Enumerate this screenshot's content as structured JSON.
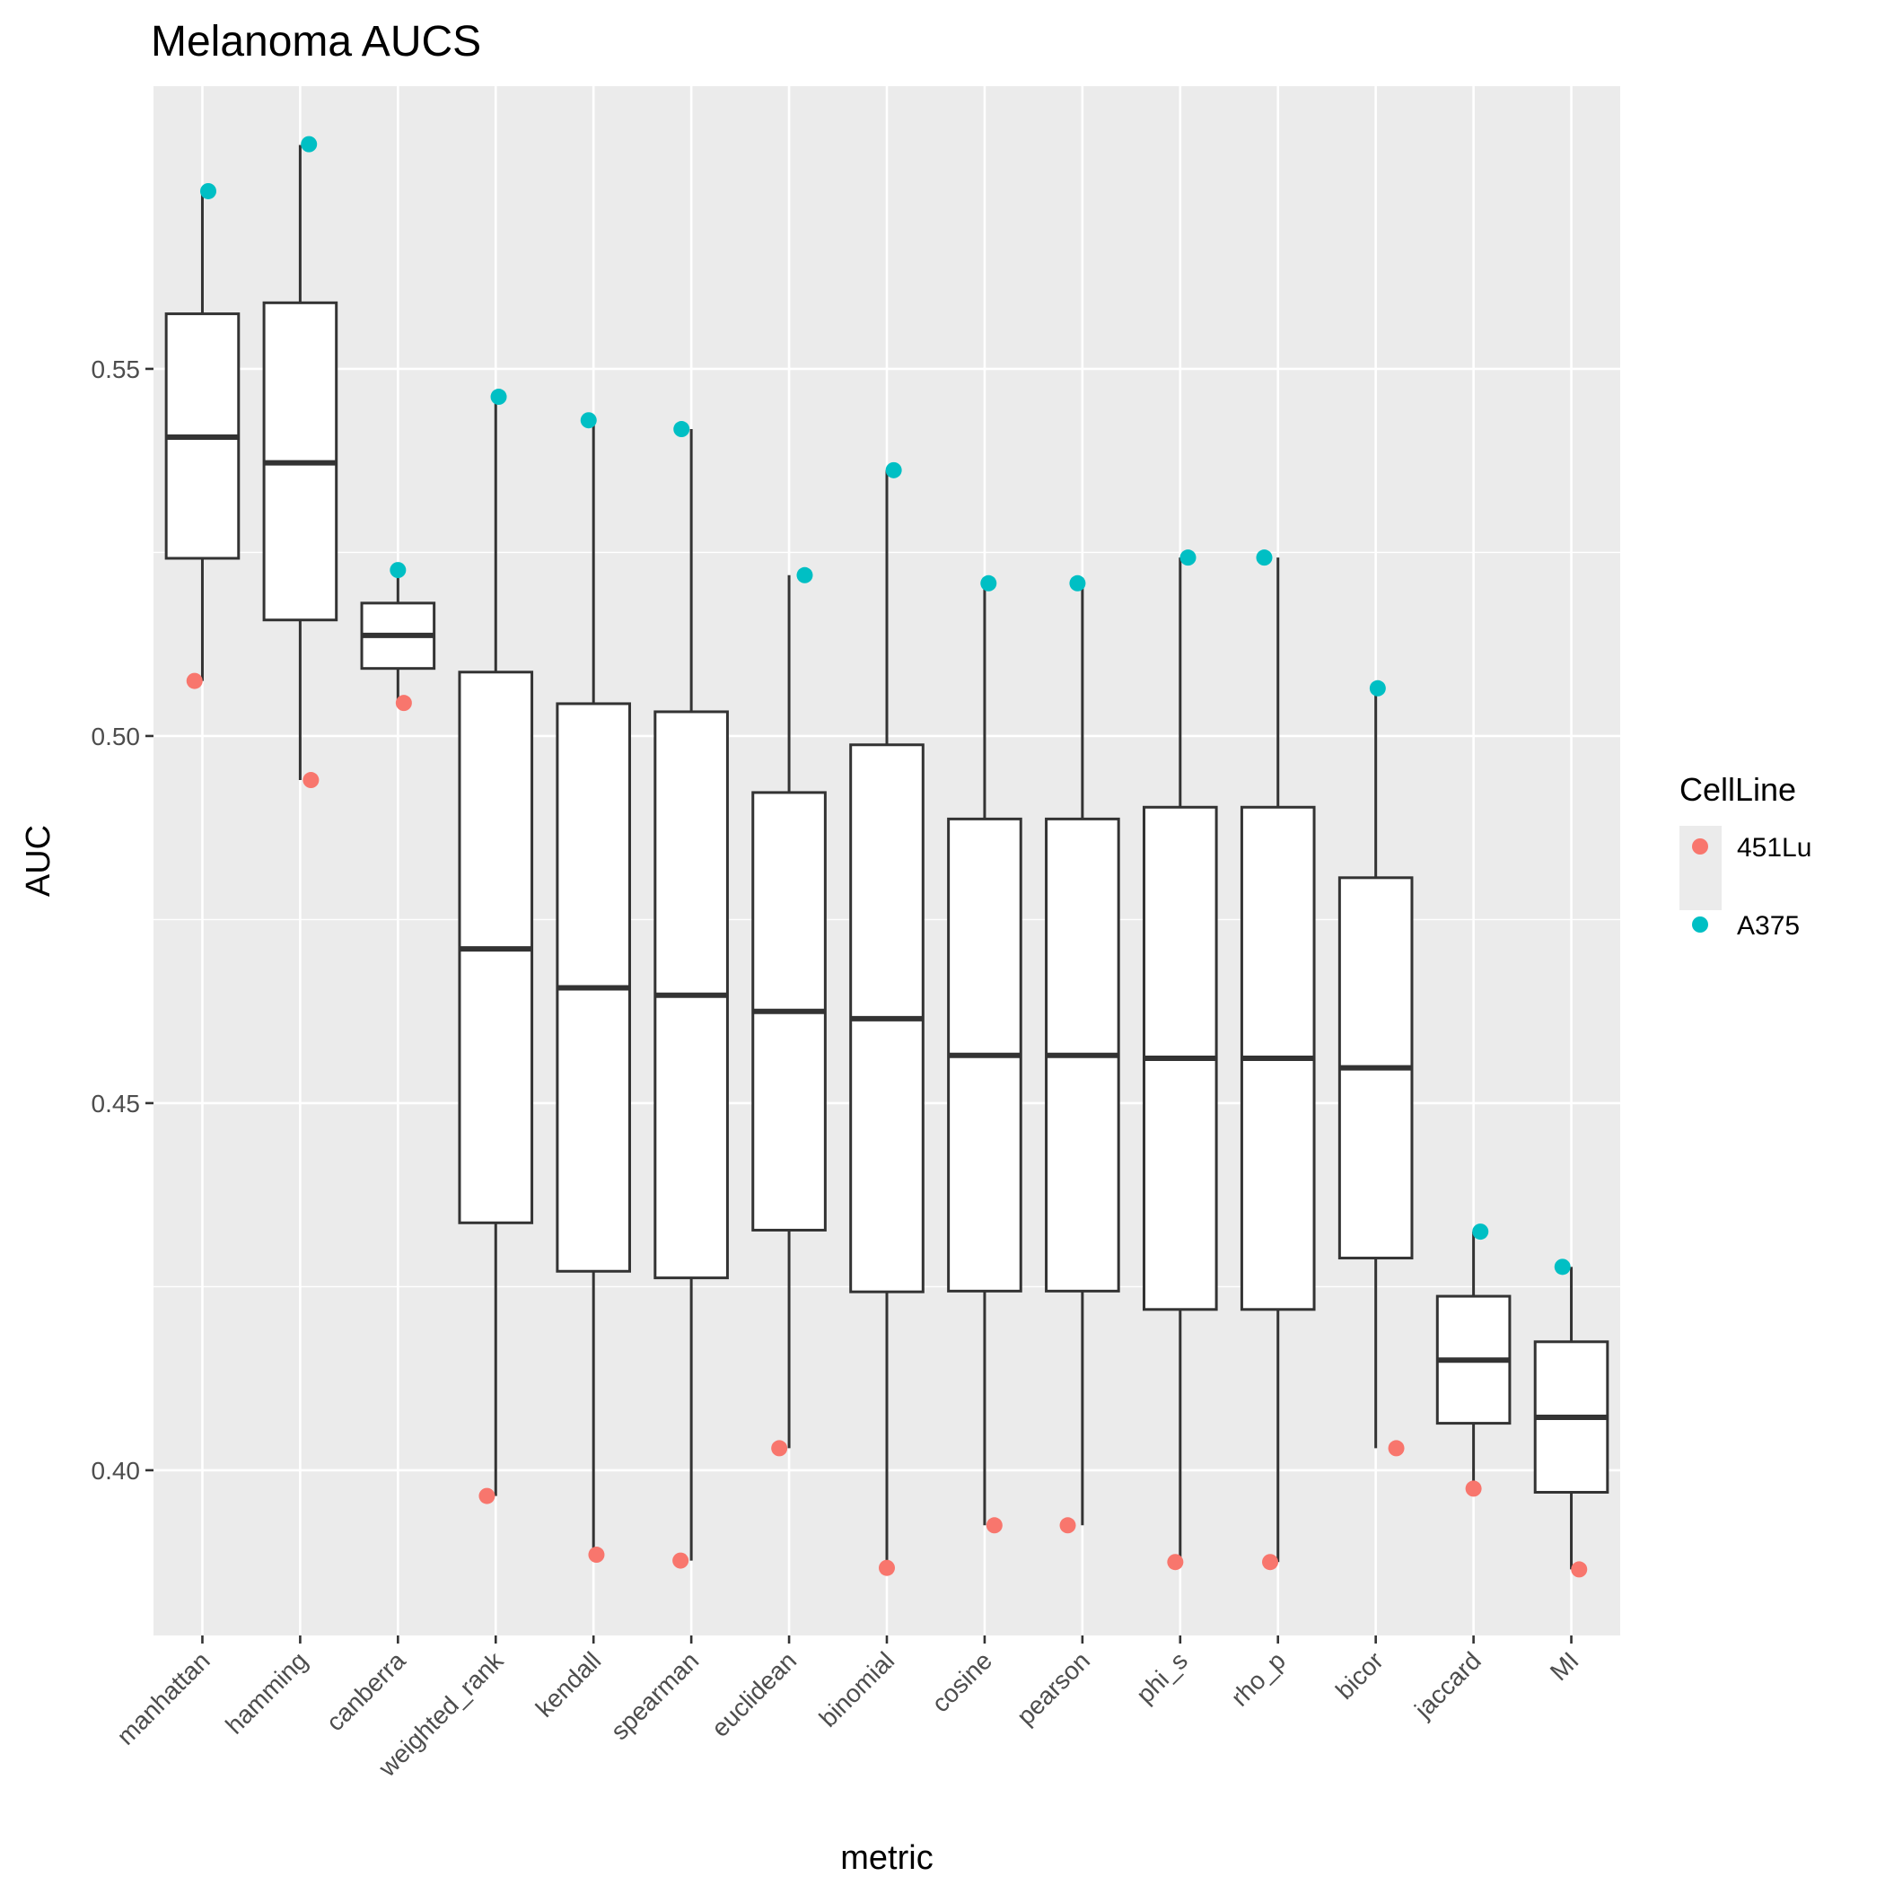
{
  "chart_data": {
    "type": "box",
    "title": "Melanoma AUCS",
    "xlabel": "metric",
    "ylabel": "AUC",
    "ylim": [
      0.3775,
      0.5885
    ],
    "yticks": [
      0.4,
      0.45,
      0.5,
      0.55
    ],
    "ytick_labels": [
      "0.40",
      "0.45",
      "0.50",
      "0.55"
    ],
    "grid": true,
    "legend": {
      "title": "CellLine",
      "position": "right",
      "entries": [
        {
          "name": "451Lu",
          "color": "#f8766d"
        },
        {
          "name": "A375",
          "color": "#00bfc4"
        }
      ]
    },
    "categories": [
      "manhattan",
      "hamming",
      "canberra",
      "weighted_rank",
      "kendall",
      "spearman",
      "euclidean",
      "binomial",
      "cosine",
      "pearson",
      "phi_s",
      "rho_p",
      "bicor",
      "jaccard",
      "MI"
    ],
    "boxes": [
      {
        "whisker_low": 0.5075,
        "q1": 0.5242,
        "median": 0.5407,
        "q3": 0.5575,
        "whisker_high": 0.574
      },
      {
        "whisker_low": 0.494,
        "q1": 0.5158,
        "median": 0.5372,
        "q3": 0.559,
        "whisker_high": 0.5805
      },
      {
        "whisker_low": 0.5045,
        "q1": 0.5092,
        "median": 0.5137,
        "q3": 0.5181,
        "whisker_high": 0.5226
      },
      {
        "whisker_low": 0.3965,
        "q1": 0.4337,
        "median": 0.471,
        "q3": 0.5087,
        "whisker_high": 0.546
      },
      {
        "whisker_low": 0.3885,
        "q1": 0.4271,
        "median": 0.4657,
        "q3": 0.5044,
        "whisker_high": 0.543
      },
      {
        "whisker_low": 0.3877,
        "q1": 0.4262,
        "median": 0.4647,
        "q3": 0.5033,
        "whisker_high": 0.5418
      },
      {
        "whisker_low": 0.403,
        "q1": 0.4327,
        "median": 0.4625,
        "q3": 0.4923,
        "whisker_high": 0.5219
      },
      {
        "whisker_low": 0.3867,
        "q1": 0.4243,
        "median": 0.4615,
        "q3": 0.4988,
        "whisker_high": 0.5362
      },
      {
        "whisker_low": 0.3925,
        "q1": 0.4244,
        "median": 0.4565,
        "q3": 0.4887,
        "whisker_high": 0.5208
      },
      {
        "whisker_low": 0.3925,
        "q1": 0.4244,
        "median": 0.4565,
        "q3": 0.4887,
        "whisker_high": 0.5208
      },
      {
        "whisker_low": 0.3875,
        "q1": 0.4219,
        "median": 0.4561,
        "q3": 0.4903,
        "whisker_high": 0.5243
      },
      {
        "whisker_low": 0.3875,
        "q1": 0.4219,
        "median": 0.4561,
        "q3": 0.4903,
        "whisker_high": 0.5243
      },
      {
        "whisker_low": 0.403,
        "q1": 0.4289,
        "median": 0.4548,
        "q3": 0.4807,
        "whisker_high": 0.5065
      },
      {
        "whisker_low": 0.3975,
        "q1": 0.4064,
        "median": 0.415,
        "q3": 0.4237,
        "whisker_high": 0.4325
      },
      {
        "whisker_low": 0.3865,
        "q1": 0.397,
        "median": 0.4072,
        "q3": 0.4175,
        "whisker_high": 0.4277
      }
    ],
    "series": [
      {
        "name": "451Lu",
        "color": "#f8766d",
        "values": [
          0.5075,
          0.494,
          0.5045,
          0.3965,
          0.3885,
          0.3877,
          0.403,
          0.3867,
          0.3925,
          0.3925,
          0.3875,
          0.3875,
          0.403,
          0.3975,
          0.3865
        ]
      },
      {
        "name": "A375",
        "color": "#00bfc4",
        "values": [
          0.5742,
          0.5806,
          0.5226,
          0.5462,
          0.543,
          0.5418,
          0.5219,
          0.5362,
          0.5208,
          0.5208,
          0.5243,
          0.5243,
          0.5065,
          0.4325,
          0.4277
        ]
      }
    ]
  }
}
